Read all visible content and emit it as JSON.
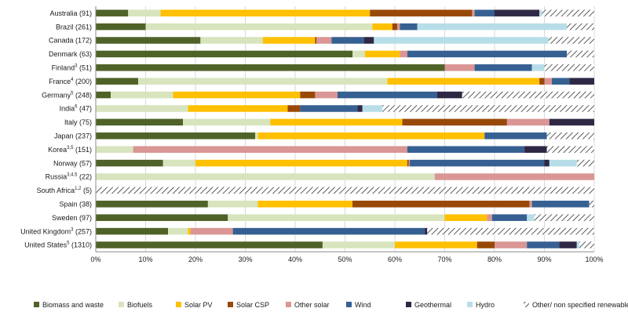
{
  "chart_data": {
    "type": "bar",
    "orientation": "horizontal",
    "stacked": true,
    "percent_stacked": true,
    "xlim": [
      0,
      100
    ],
    "x_ticks": [
      "0%",
      "10%",
      "20%",
      "30%",
      "40%",
      "50%",
      "60%",
      "70%",
      "80%",
      "90%",
      "100%"
    ],
    "grid": true,
    "legend_position": "bottom",
    "categories": [
      {
        "name": "Australia",
        "sup": "",
        "count": "(91)"
      },
      {
        "name": "Brazil",
        "sup": "",
        "count": "(261)"
      },
      {
        "name": "Canada",
        "sup": "",
        "count": "(172)"
      },
      {
        "name": "Denmark",
        "sup": "",
        "count": "(63)"
      },
      {
        "name": "Finland",
        "sup": "3",
        "count": "(51)"
      },
      {
        "name": "France",
        "sup": "4",
        "count": "(200)"
      },
      {
        "name": "Germany",
        "sup": "5",
        "count": "(248)"
      },
      {
        "name": "India",
        "sup": "6",
        "count": "(47)"
      },
      {
        "name": "Italy",
        "sup": "",
        "count": "(75)"
      },
      {
        "name": "Japan",
        "sup": "",
        "count": "(237)"
      },
      {
        "name": "Korea",
        "sup": "3,5",
        "count": "(151)"
      },
      {
        "name": "Norway",
        "sup": "",
        "count": "(57)"
      },
      {
        "name": "Russia",
        "sup": "3,4,5",
        "count": "(22)"
      },
      {
        "name": "South Africa",
        "sup": "1,2",
        "count": "(5)"
      },
      {
        "name": "Spain",
        "sup": "",
        "count": "(38)"
      },
      {
        "name": "Sweden",
        "sup": "",
        "count": "(97)"
      },
      {
        "name": "United Kingdom",
        "sup": "3",
        "count": "(257)"
      },
      {
        "name": "United States",
        "sup": "5",
        "count": "(1310)"
      }
    ],
    "series": [
      {
        "name": "Biomass and waste",
        "color": "#4f6228",
        "pattern": "solid",
        "values": [
          6.5,
          10,
          21,
          51.5,
          70,
          8.5,
          3,
          0,
          17.5,
          32,
          0,
          13.5,
          0,
          0,
          22.5,
          26.5,
          14.5,
          45.5
        ]
      },
      {
        "name": "Biofuels",
        "color": "#d7e4bd",
        "pattern": "solid",
        "values": [
          6.5,
          45.5,
          12.5,
          2.5,
          0,
          50,
          12.5,
          18.5,
          17.5,
          0.5,
          7.5,
          6.5,
          68,
          0,
          10,
          43.5,
          4,
          14.5
        ]
      },
      {
        "name": "Solar PV",
        "color": "#ffc000",
        "pattern": "solid",
        "values": [
          42,
          4,
          10.5,
          7,
          0,
          30.5,
          25.5,
          20,
          26.5,
          45.5,
          0,
          42.5,
          0,
          0,
          19,
          8.5,
          0.5,
          16.5
        ]
      },
      {
        "name": "Solar CSP",
        "color": "#984807",
        "pattern": "solid",
        "values": [
          20.5,
          1,
          0.3,
          0,
          0,
          1,
          3,
          2.5,
          21,
          0,
          0,
          0.3,
          0,
          0,
          35.5,
          0,
          0,
          3.5
        ]
      },
      {
        "name": "Other solar",
        "color": "#d99694",
        "pattern": "solid",
        "values": [
          0.5,
          0.5,
          3,
          1.5,
          6,
          1.5,
          4.5,
          0,
          8.5,
          0,
          55,
          0.2,
          32,
          0,
          0.5,
          1,
          8.5,
          6.5
        ]
      },
      {
        "name": "Wind",
        "color": "#366092",
        "pattern": "solid",
        "values": [
          4,
          3.5,
          6.5,
          32,
          11.5,
          3.5,
          20,
          11.5,
          0,
          12.5,
          23.5,
          27,
          0,
          0,
          11.5,
          7,
          38.5,
          6.5
        ]
      },
      {
        "name": "Geothermal",
        "color": "#2f2845",
        "pattern": "solid",
        "values": [
          9,
          0,
          2,
          0,
          0,
          5,
          5,
          1,
          9,
          0,
          4.5,
          1,
          0,
          0,
          0,
          0,
          0.5,
          3.5
        ]
      },
      {
        "name": "Hydro",
        "color": "#b7dee8",
        "pattern": "solid",
        "values": [
          0.5,
          30,
          35,
          0,
          2.5,
          1.5,
          0,
          4,
          0,
          0,
          0,
          5.5,
          0,
          0,
          0,
          1.5,
          0,
          0.5
        ]
      },
      {
        "name": "Other/ non specified renewables",
        "color": "#ffffff",
        "pattern": "hatch",
        "values": [
          10.5,
          5.5,
          9.2,
          5.5,
          10,
          2,
          26.5,
          42.5,
          0,
          9.5,
          9.5,
          3.5,
          0,
          100,
          1,
          12,
          33.5,
          3.5
        ]
      }
    ]
  }
}
